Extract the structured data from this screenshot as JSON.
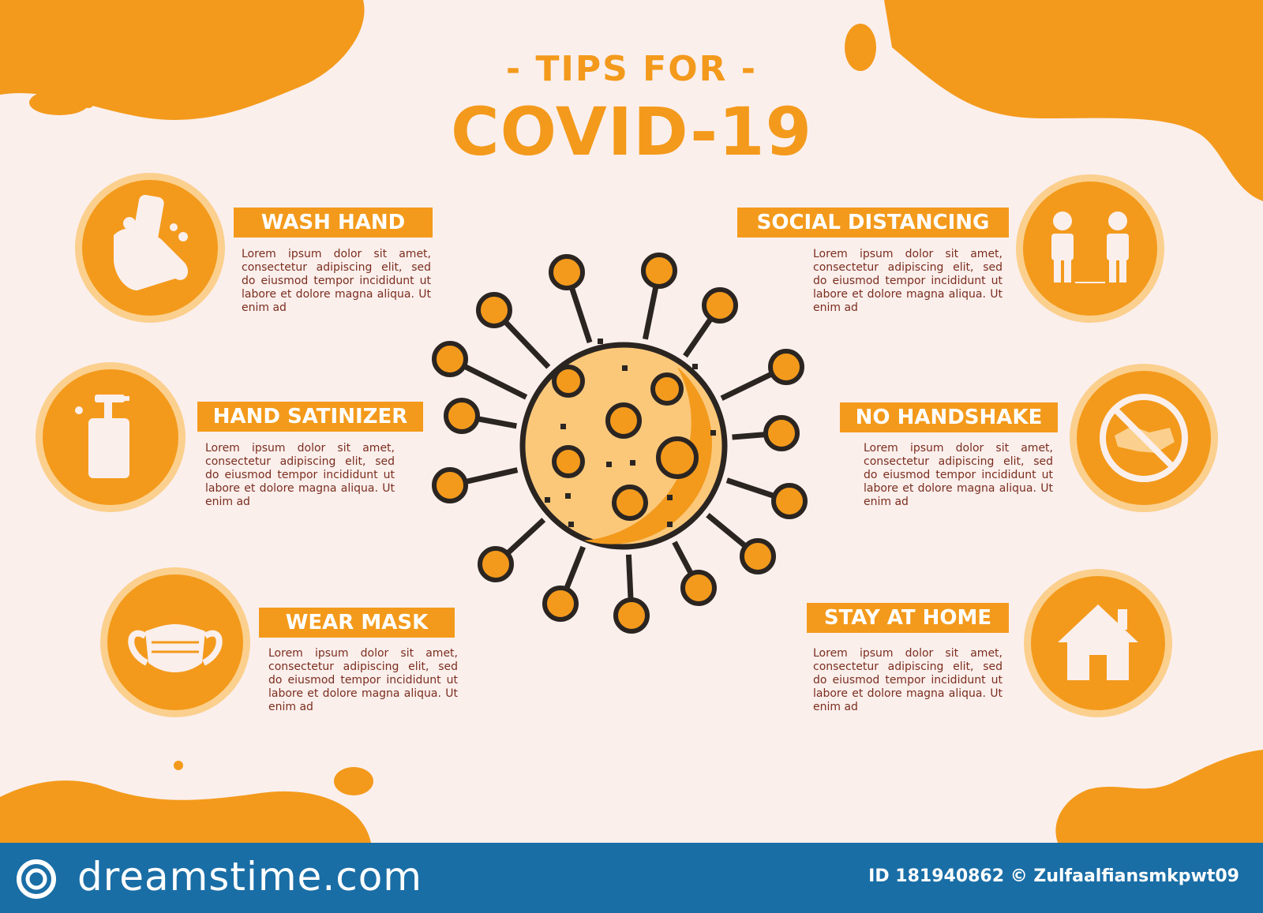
{
  "title": {
    "pre": "- TIPS FOR -",
    "main": "COVID-19"
  },
  "lorem": "Lorem ipsum dolor sit amet, consectetur adipiscing elit, sed do eiusmod tempor incididunt ut labore et dolore magna aliqua. Ut enim ad",
  "tips": [
    {
      "label": "WASH HAND",
      "icon": "washing-hands-icon"
    },
    {
      "label": "HAND SATINIZER",
      "icon": "sanitizer-bottle-icon"
    },
    {
      "label": "WEAR MASK",
      "icon": "face-mask-icon"
    },
    {
      "label": "SOCIAL DISTANCING",
      "icon": "two-people-icon"
    },
    {
      "label": "NO HANDSHAKE",
      "icon": "no-handshake-icon"
    },
    {
      "label": "STAY AT HOME",
      "icon": "house-icon"
    }
  ],
  "colors": {
    "accent": "#f39a1c",
    "accent_light": "#fbd08e",
    "background": "#fbefec",
    "text": "#7a2e1f",
    "footer": "#1a6ea6"
  },
  "footer": {
    "brand": "dreamstime.com",
    "credit": "ID 181940862 © Zulfaalfiansmkpwt09"
  }
}
